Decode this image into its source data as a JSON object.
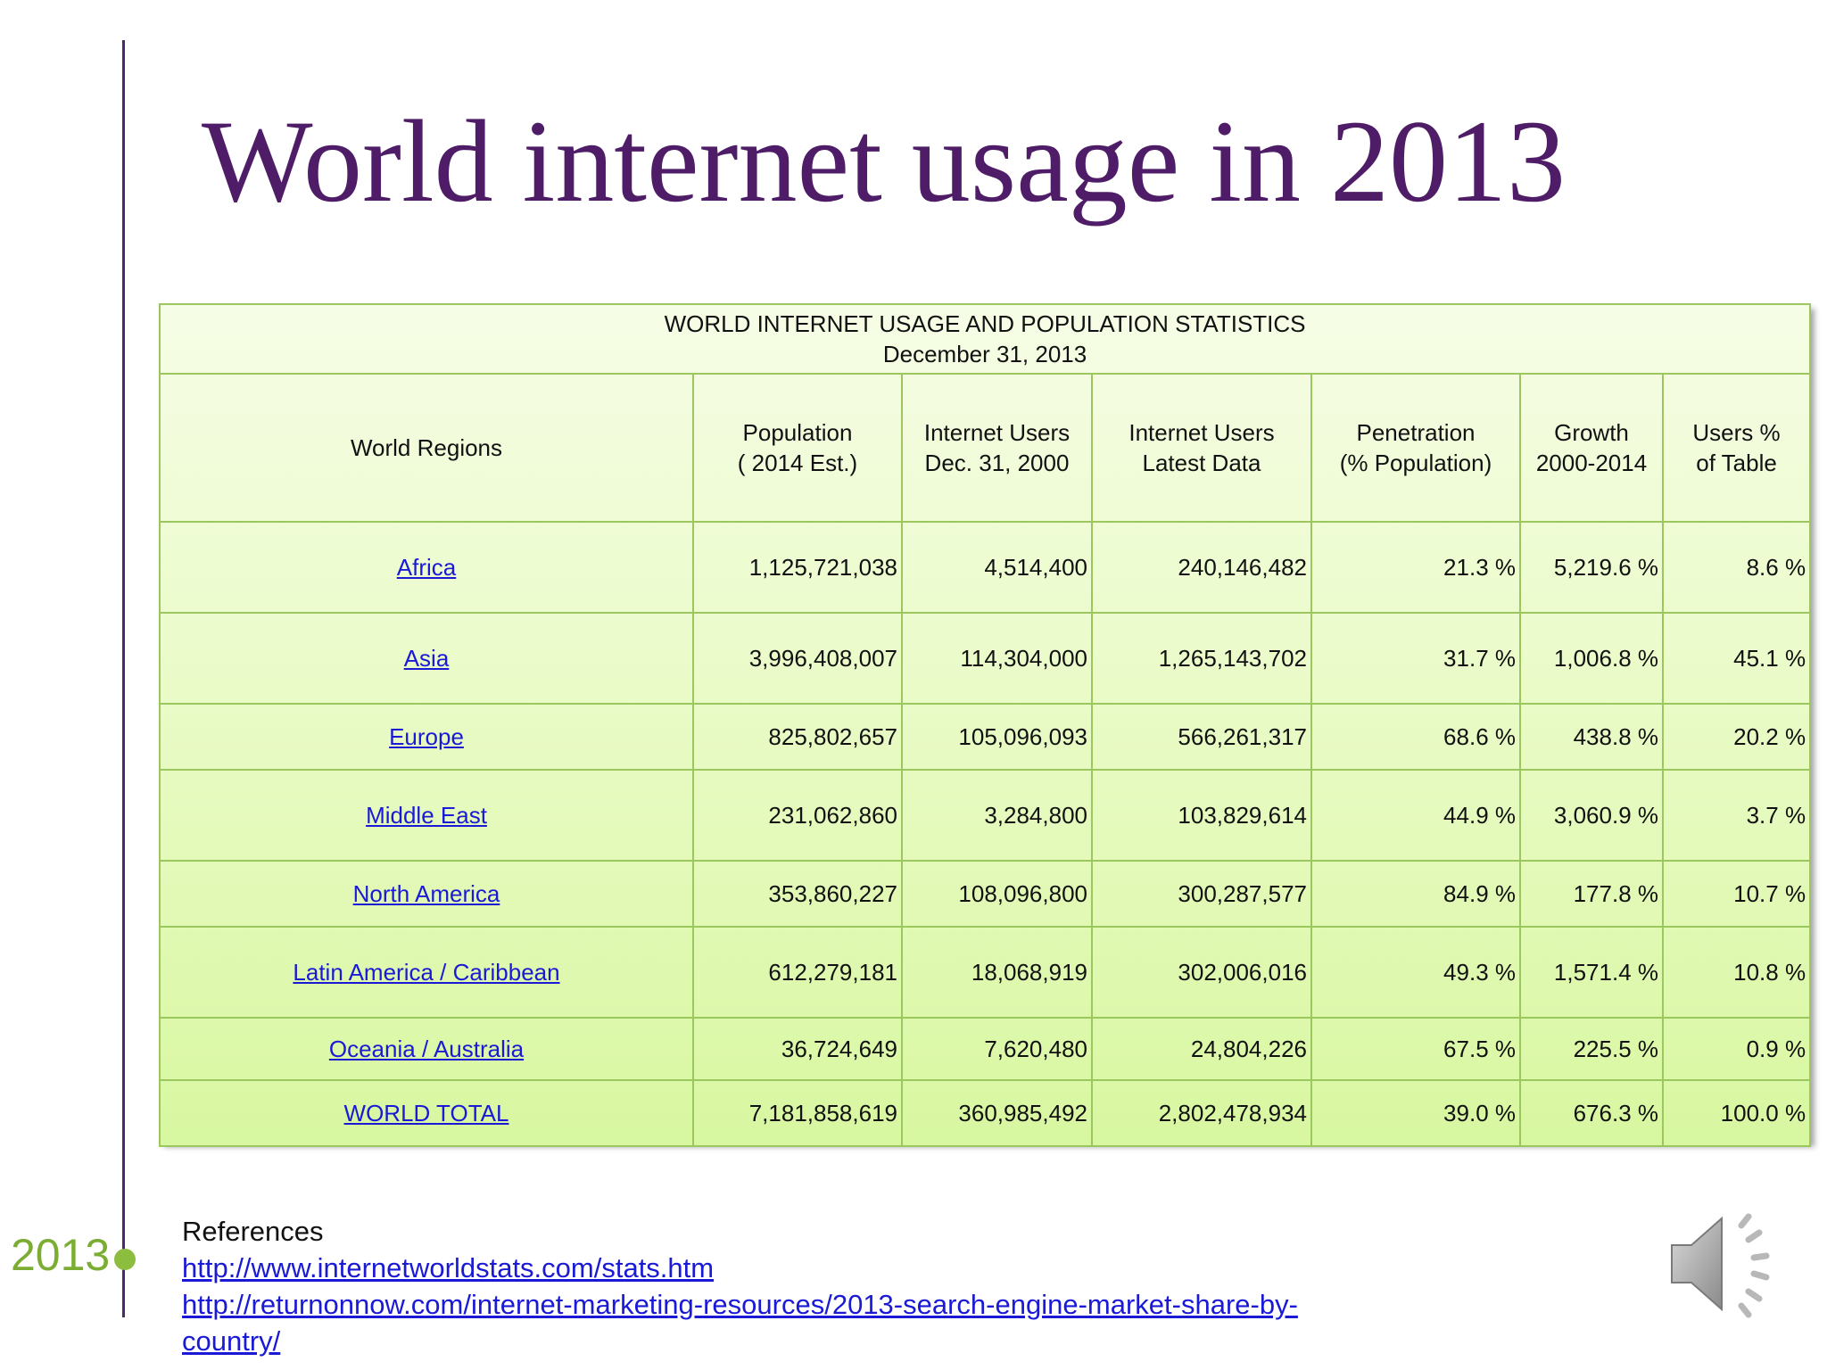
{
  "slide": {
    "title": "World internet usage in 2013",
    "year_marker": "2013"
  },
  "table": {
    "caption_line1": "WORLD INTERNET USAGE AND POPULATION STATISTICS",
    "caption_line2": "December 31, 2013",
    "headers": [
      {
        "line1": "World Regions",
        "line2": ""
      },
      {
        "line1": "Population",
        "line2": "( 2014 Est.)"
      },
      {
        "line1": "Internet Users",
        "line2": "Dec. 31, 2000"
      },
      {
        "line1": "Internet Users",
        "line2": "Latest Data"
      },
      {
        "line1": "Penetration",
        "line2": "(% Population)"
      },
      {
        "line1": "Growth",
        "line2": "2000-2014"
      },
      {
        "line1": "Users %",
        "line2": "of Table"
      }
    ],
    "rows": [
      {
        "region": "Africa",
        "population": "1,125,721,038",
        "users_2000": "4,514,400",
        "users_latest": "240,146,482",
        "penetration": "21.3 %",
        "growth": "5,219.6 %",
        "users_pct": "8.6 %"
      },
      {
        "region": "Asia",
        "population": "3,996,408,007",
        "users_2000": "114,304,000",
        "users_latest": "1,265,143,702",
        "penetration": "31.7 %",
        "growth": "1,006.8 %",
        "users_pct": "45.1 %"
      },
      {
        "region": "Europe",
        "population": "825,802,657",
        "users_2000": "105,096,093",
        "users_latest": "566,261,317",
        "penetration": "68.6 %",
        "growth": "438.8 %",
        "users_pct": "20.2 %"
      },
      {
        "region": "Middle East",
        "population": "231,062,860",
        "users_2000": "3,284,800",
        "users_latest": "103,829,614",
        "penetration": "44.9 %",
        "growth": "3,060.9 %",
        "users_pct": "3.7 %"
      },
      {
        "region": "North America",
        "population": "353,860,227",
        "users_2000": "108,096,800",
        "users_latest": "300,287,577",
        "penetration": "84.9 %",
        "growth": "177.8 %",
        "users_pct": "10.7 %"
      },
      {
        "region": "Latin America / Caribbean",
        "population": "612,279,181",
        "users_2000": "18,068,919",
        "users_latest": "302,006,016",
        "penetration": "49.3 %",
        "growth": "1,571.4 %",
        "users_pct": "10.8 %"
      },
      {
        "region": "Oceania / Australia",
        "population": "36,724,649",
        "users_2000": "7,620,480",
        "users_latest": "24,804,226",
        "penetration": "67.5 %",
        "growth": "225.5 %",
        "users_pct": "0.9 %"
      },
      {
        "region": "WORLD TOTAL",
        "population": "7,181,858,619",
        "users_2000": "360,985,492",
        "users_latest": "2,802,478,934",
        "penetration": "39.0 %",
        "growth": "676.3 %",
        "users_pct": "100.0 %"
      }
    ]
  },
  "references": {
    "heading": "References",
    "links": [
      "http://www.internetworldstats.com/stats.htm",
      "http://returnonnow.com/internet-marketing-resources/2013-search-engine-market-share-by-country/"
    ]
  },
  "icons": {
    "speaker": "speaker-icon",
    "timeline_dot": "timeline-dot-icon"
  },
  "colors": {
    "title": "#4f1d68",
    "timeline": "#4a2a6a",
    "year_marker": "#7aad32",
    "table_border": "#9cc75e",
    "link": "#1a1ad6"
  }
}
